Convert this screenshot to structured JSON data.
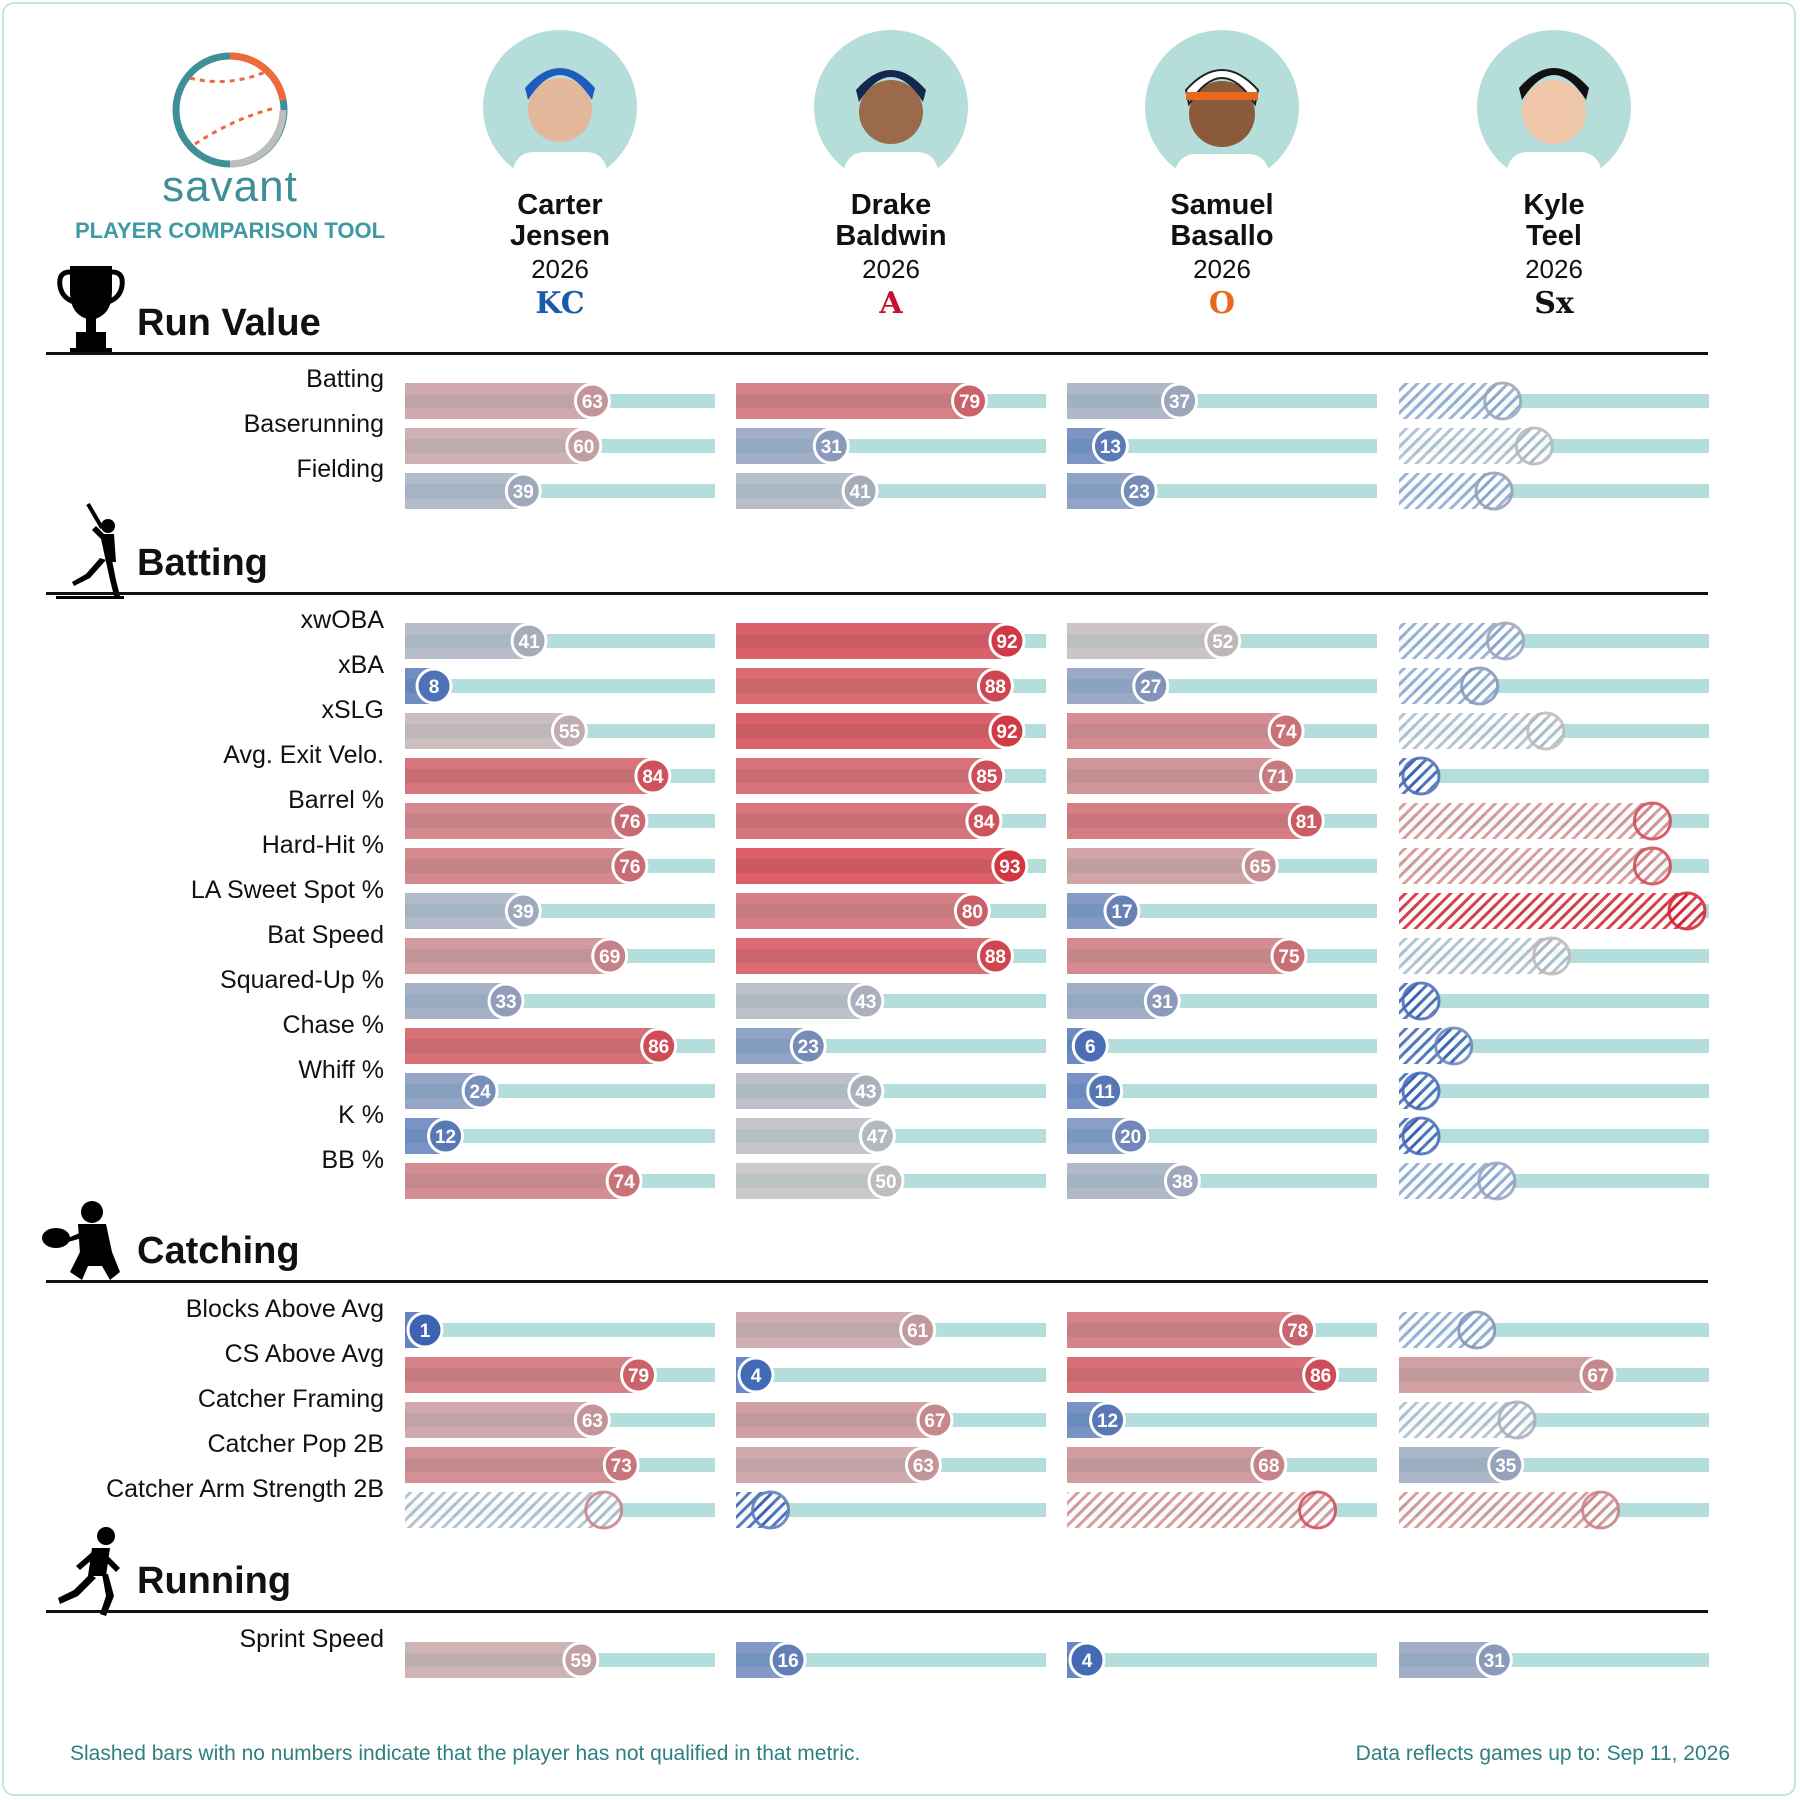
{
  "header": {
    "logo_word": "savant",
    "logo_subtitle": "PLAYER COMPARISON TOOL"
  },
  "players": [
    {
      "first": "Carter",
      "last": "Jensen",
      "year": "2026",
      "team_logo": "KC",
      "team_color": "#1a5aa8"
    },
    {
      "first": "Drake",
      "last": "Baldwin",
      "year": "2026",
      "team_logo": "A",
      "team_color": "#c8102e"
    },
    {
      "first": "Samuel",
      "last": "Basallo",
      "year": "2026",
      "team_logo": "O",
      "team_color": "#e8681e"
    },
    {
      "first": "Kyle",
      "last": "Teel",
      "year": "2026",
      "team_logo": "Sx",
      "team_color": "#111111"
    }
  ],
  "icons": [
    "trophy-icon",
    "batter-icon",
    "catcher-icon",
    "runner-icon"
  ],
  "colors": {
    "track": "#b3dedb",
    "cold": "#3a62b4",
    "neutral": "#bdbdbd",
    "hot": "#d5202e",
    "footnote": "#2f7f7f",
    "accent": "#3f8f99"
  },
  "chart_data": {
    "type": "bar",
    "scale": [
      0,
      100
    ],
    "sections": [
      {
        "title": "Run Value",
        "icon": "trophy-icon",
        "metrics": [
          {
            "label": "Batting",
            "values": [
              63,
              79,
              37,
              null
            ],
            "nq": [
              false,
              false,
              false,
              true
            ]
          },
          {
            "label": "Baserunning",
            "values": [
              60,
              31,
              13,
              null
            ],
            "nq": [
              false,
              false,
              false,
              true
            ]
          },
          {
            "label": "Fielding",
            "values": [
              39,
              41,
              23,
              null
            ],
            "nq": [
              false,
              false,
              false,
              true
            ]
          }
        ]
      },
      {
        "title": "Batting",
        "icon": "batter-icon",
        "metrics": [
          {
            "label": "xwOBA",
            "values": [
              41,
              92,
              52,
              null
            ]
          },
          {
            "label": "xBA",
            "values": [
              8,
              88,
              27,
              null
            ]
          },
          {
            "label": "xSLG",
            "values": [
              55,
              92,
              74,
              null
            ]
          },
          {
            "label": "Avg. Exit Velo.",
            "values": [
              84,
              85,
              71,
              null
            ]
          },
          {
            "label": "Barrel %",
            "values": [
              76,
              84,
              81,
              null
            ]
          },
          {
            "label": "Hard-Hit %",
            "values": [
              76,
              93,
              65,
              null
            ]
          },
          {
            "label": "LA Sweet Spot %",
            "values": [
              39,
              80,
              17,
              null
            ]
          },
          {
            "label": "Bat Speed",
            "values": [
              69,
              88,
              75,
              null
            ]
          },
          {
            "label": "Squared-Up %",
            "values": [
              33,
              43,
              31,
              null
            ]
          },
          {
            "label": "Chase %",
            "values": [
              86,
              23,
              6,
              null
            ]
          },
          {
            "label": "Whiff %",
            "values": [
              24,
              43,
              11,
              null
            ]
          },
          {
            "label": "K %",
            "values": [
              12,
              47,
              20,
              null
            ]
          },
          {
            "label": "BB %",
            "values": [
              74,
              50,
              38,
              null
            ]
          }
        ]
      },
      {
        "title": "Catching",
        "icon": "catcher-icon",
        "metrics": [
          {
            "label": "Blocks Above Avg",
            "values": [
              1,
              61,
              78,
              null
            ]
          },
          {
            "label": "CS Above Avg",
            "values": [
              79,
              4,
              86,
              67
            ]
          },
          {
            "label": "Catcher Framing",
            "values": [
              63,
              67,
              12,
              null
            ]
          },
          {
            "label": "Catcher Pop 2B",
            "values": [
              73,
              63,
              68,
              35
            ]
          },
          {
            "label": "Catcher Arm Strength 2B",
            "values": [
              null,
              null,
              null,
              null
            ]
          }
        ]
      },
      {
        "title": "Running",
        "icon": "runner-icon",
        "metrics": [
          {
            "label": "Sprint Speed",
            "values": [
              59,
              16,
              4,
              31
            ]
          }
        ]
      }
    ],
    "unqualified_levels": {
      "Batting": [
        null,
        null,
        null,
        36
      ],
      "Baserunning": [
        null,
        null,
        null,
        47
      ],
      "Fielding": [
        null,
        null,
        null,
        33
      ],
      "xwOBA": [
        null,
        null,
        null,
        37
      ],
      "xBA": [
        null,
        null,
        null,
        28
      ],
      "xSLG": [
        null,
        null,
        null,
        51
      ],
      "Avg. Exit Velo.": [
        null,
        null,
        null,
        5
      ],
      "Barrel %": [
        null,
        null,
        null,
        88
      ],
      "Hard-Hit %": [
        null,
        null,
        null,
        88
      ],
      "LA Sweet Spot %": [
        null,
        null,
        null,
        100
      ],
      "Bat Speed": [
        null,
        null,
        null,
        53
      ],
      "Squared-Up %": [
        null,
        null,
        null,
        5
      ],
      "Chase %": [
        null,
        null,
        null,
        19
      ],
      "Whiff %": [
        null,
        null,
        null,
        4
      ],
      "K %": [
        null,
        null,
        null,
        4
      ],
      "BB %": [
        null,
        null,
        null,
        34
      ],
      "Blocks Above Avg": [
        null,
        null,
        null,
        27
      ],
      "Catcher Framing": [
        null,
        null,
        null,
        41
      ],
      "Catcher Arm Strength 2B": [
        69,
        12,
        87,
        70
      ]
    }
  },
  "footer": {
    "note": "Slashed bars with no numbers indicate that the player has not qualified in that metric.",
    "date": "Data reflects games up to: Sep 11, 2026"
  }
}
